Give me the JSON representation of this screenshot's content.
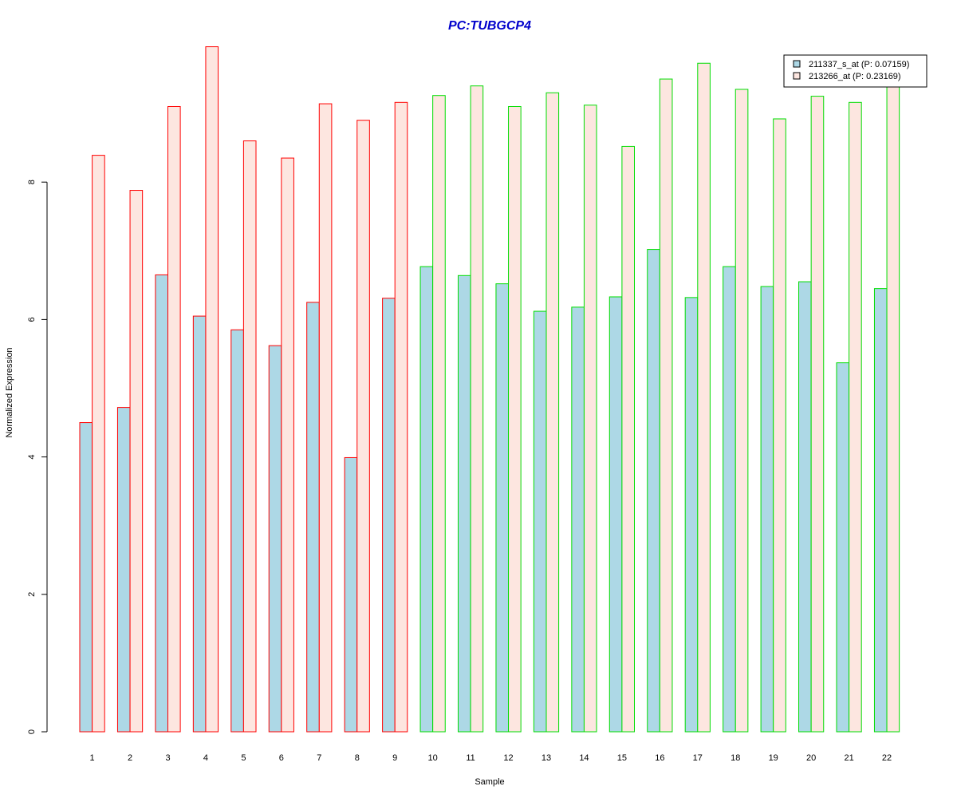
{
  "chart_data": {
    "type": "bar",
    "title": "PC:TUBGCP4",
    "xlabel": "Sample",
    "ylabel": "Normalized Expression",
    "ylim": [
      0,
      10
    ],
    "yticks": [
      0,
      2,
      4,
      6,
      8
    ],
    "grid": false,
    "legend_position": "top-right",
    "categories": [
      "1",
      "2",
      "3",
      "4",
      "5",
      "6",
      "7",
      "8",
      "9",
      "10",
      "11",
      "12",
      "13",
      "14",
      "15",
      "16",
      "17",
      "18",
      "19",
      "20",
      "21",
      "22"
    ],
    "series": [
      {
        "name": "211337_s_at (P: 0.07159)",
        "fill": "#add8e6",
        "values": [
          4.5,
          4.72,
          6.65,
          6.05,
          5.85,
          5.62,
          6.25,
          3.99,
          6.31,
          6.77,
          6.64,
          6.52,
          6.12,
          6.18,
          6.33,
          7.02,
          6.32,
          6.77,
          6.48,
          6.55,
          5.37,
          6.45
        ]
      },
      {
        "name": "213266_at (P: 0.23169)",
        "fill": "#fde6e0",
        "values": [
          8.39,
          7.88,
          9.1,
          9.97,
          8.6,
          8.35,
          9.14,
          8.9,
          9.16,
          9.26,
          9.4,
          9.1,
          9.3,
          9.12,
          8.52,
          9.5,
          9.73,
          9.35,
          8.92,
          9.25,
          9.16,
          9.44
        ]
      }
    ],
    "sample_group_colors": [
      "#ff0000",
      "#ff0000",
      "#ff0000",
      "#ff0000",
      "#ff0000",
      "#ff0000",
      "#ff0000",
      "#ff0000",
      "#ff0000",
      "#00dd00",
      "#00dd00",
      "#00dd00",
      "#00dd00",
      "#00dd00",
      "#00dd00",
      "#00dd00",
      "#00dd00",
      "#00dd00",
      "#00dd00",
      "#00dd00",
      "#00dd00",
      "#00dd00"
    ],
    "title_color": "#0000cc"
  }
}
